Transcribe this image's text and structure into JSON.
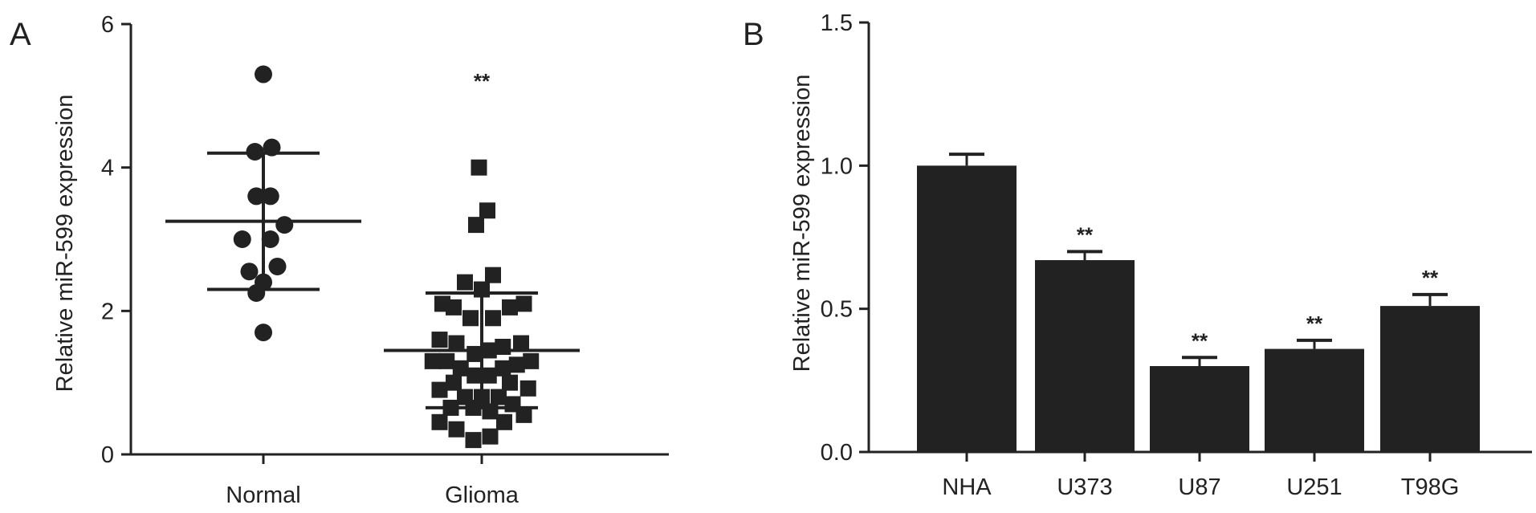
{
  "panels": [
    {
      "panel_label": "A",
      "chart_data": {
        "type": "scatter",
        "ylabel": "Relative miR-599 expression",
        "ylim": [
          0,
          6
        ],
        "yticks": [
          "0",
          "2",
          "4",
          "6"
        ],
        "categories": [
          "Normal",
          "Glioma"
        ],
        "significance": [
          "",
          "**"
        ],
        "series": [
          {
            "name": "Normal",
            "marker": "circle",
            "mean": 3.25,
            "sd": 0.95,
            "points": [
              {
                "x": 0.0,
                "y": 5.3
              },
              {
                "x": -0.06,
                "y": 4.22
              },
              {
                "x": 0.06,
                "y": 4.28
              },
              {
                "x": -0.05,
                "y": 3.6
              },
              {
                "x": 0.05,
                "y": 3.6
              },
              {
                "x": -0.15,
                "y": 3.0
              },
              {
                "x": 0.15,
                "y": 3.2
              },
              {
                "x": 0.05,
                "y": 3.0
              },
              {
                "x": -0.1,
                "y": 2.55
              },
              {
                "x": 0.1,
                "y": 2.62
              },
              {
                "x": -0.05,
                "y": 2.25
              },
              {
                "x": 0.0,
                "y": 2.4
              },
              {
                "x": 0.0,
                "y": 1.7
              }
            ]
          },
          {
            "name": "Glioma",
            "marker": "square",
            "mean": 1.45,
            "sd": 0.8,
            "points": [
              {
                "x": -0.02,
                "y": 4.0
              },
              {
                "x": 0.04,
                "y": 3.4
              },
              {
                "x": -0.04,
                "y": 3.2
              },
              {
                "x": 0.08,
                "y": 2.5
              },
              {
                "x": -0.12,
                "y": 2.4
              },
              {
                "x": 0.0,
                "y": 2.3
              },
              {
                "x": -0.28,
                "y": 2.1
              },
              {
                "x": -0.2,
                "y": 2.05
              },
              {
                "x": 0.2,
                "y": 2.05
              },
              {
                "x": 0.3,
                "y": 2.1
              },
              {
                "x": -0.08,
                "y": 1.9
              },
              {
                "x": 0.08,
                "y": 1.9
              },
              {
                "x": -0.3,
                "y": 1.6
              },
              {
                "x": 0.28,
                "y": 1.55
              },
              {
                "x": -0.18,
                "y": 1.55
              },
              {
                "x": 0.15,
                "y": 1.5
              },
              {
                "x": -0.05,
                "y": 1.4
              },
              {
                "x": 0.05,
                "y": 1.45
              },
              {
                "x": -0.35,
                "y": 1.3
              },
              {
                "x": 0.35,
                "y": 1.3
              },
              {
                "x": -0.25,
                "y": 1.3
              },
              {
                "x": 0.25,
                "y": 1.25
              },
              {
                "x": -0.15,
                "y": 1.2
              },
              {
                "x": 0.15,
                "y": 1.2
              },
              {
                "x": -0.05,
                "y": 1.1
              },
              {
                "x": 0.05,
                "y": 1.1
              },
              {
                "x": -0.2,
                "y": 1.0
              },
              {
                "x": 0.2,
                "y": 1.0
              },
              {
                "x": -0.3,
                "y": 0.9
              },
              {
                "x": 0.33,
                "y": 0.92
              },
              {
                "x": -0.12,
                "y": 0.8
              },
              {
                "x": 0.12,
                "y": 0.8
              },
              {
                "x": 0.0,
                "y": 0.8
              },
              {
                "x": -0.22,
                "y": 0.65
              },
              {
                "x": 0.22,
                "y": 0.7
              },
              {
                "x": -0.06,
                "y": 0.65
              },
              {
                "x": 0.06,
                "y": 0.6
              },
              {
                "x": -0.3,
                "y": 0.45
              },
              {
                "x": 0.3,
                "y": 0.55
              },
              {
                "x": -0.18,
                "y": 0.35
              },
              {
                "x": 0.16,
                "y": 0.45
              },
              {
                "x": -0.06,
                "y": 0.2
              },
              {
                "x": 0.06,
                "y": 0.25
              }
            ]
          }
        ]
      }
    },
    {
      "panel_label": "B",
      "chart_data": {
        "type": "bar",
        "ylabel": "Relative miR-599 expression",
        "ylim": [
          0,
          1.5
        ],
        "yticks": [
          "0.0",
          "0.5",
          "1.0",
          "1.5"
        ],
        "categories": [
          "NHA",
          "U373",
          "U87",
          "U251",
          "T98G"
        ],
        "values": [
          1.0,
          0.67,
          0.3,
          0.36,
          0.51
        ],
        "errors": [
          0.04,
          0.03,
          0.03,
          0.03,
          0.04
        ],
        "significance": [
          "",
          "**",
          "**",
          "**",
          "**"
        ]
      }
    }
  ]
}
